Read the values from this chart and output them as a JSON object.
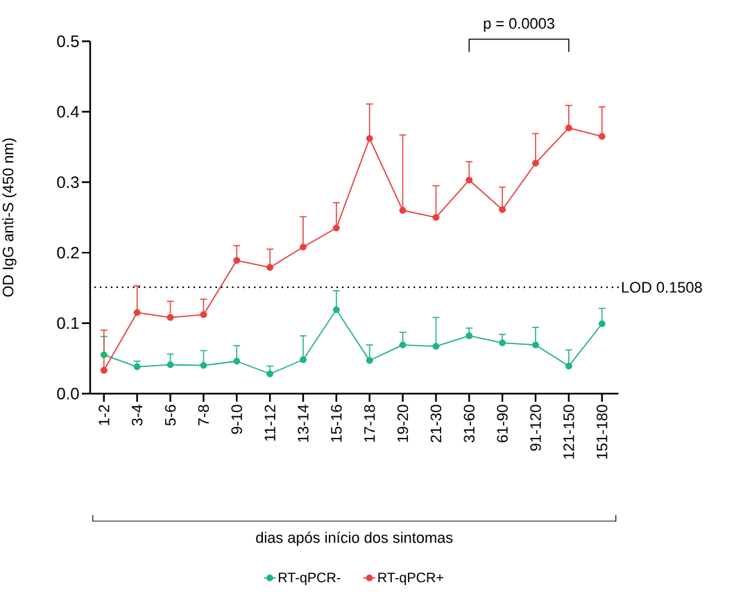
{
  "chart_data": {
    "type": "line",
    "ylabel": "OD IgG anti-S (450 nm)",
    "xlabel": "dias após início dos sintomas",
    "categories": [
      "1-2",
      "3-4",
      "5-6",
      "7-8",
      "9-10",
      "11-12",
      "13-14",
      "15-16",
      "17-18",
      "19-20",
      "21-30",
      "31-60",
      "61-90",
      "91-120",
      "121-150",
      "151-180"
    ],
    "series": [
      {
        "name": "RT-qPCR-",
        "color": "#1fb67a",
        "values": [
          0.055,
          0.038,
          0.041,
          0.04,
          0.046,
          0.028,
          0.048,
          0.119,
          0.047,
          0.069,
          0.067,
          0.082,
          0.072,
          0.069,
          0.039,
          0.099
        ],
        "errors": [
          [
            0.055,
            0.081
          ],
          [
            0.038,
            0.046
          ],
          [
            0.041,
            0.056
          ],
          [
            0.04,
            0.061
          ],
          [
            0.046,
            0.068
          ],
          [
            0.028,
            0.039
          ],
          [
            0.048,
            0.082
          ],
          [
            0.119,
            0.146
          ],
          [
            0.047,
            0.069
          ],
          [
            0.069,
            0.087
          ],
          [
            0.067,
            0.108
          ],
          [
            0.082,
            0.093
          ],
          [
            0.072,
            0.084
          ],
          [
            0.069,
            0.094
          ],
          [
            0.039,
            0.062
          ],
          [
            0.099,
            0.121
          ]
        ]
      },
      {
        "name": "RT-qPCR+",
        "color": "#e8403f",
        "values": [
          0.033,
          0.115,
          0.108,
          0.112,
          0.189,
          0.179,
          0.208,
          0.235,
          0.362,
          0.26,
          0.25,
          0.303,
          0.261,
          0.327,
          0.377,
          0.365
        ],
        "errors": [
          [
            0.033,
            0.09
          ],
          [
            0.115,
            0.153
          ],
          [
            0.108,
            0.131
          ],
          [
            0.112,
            0.134
          ],
          [
            0.189,
            0.21
          ],
          [
            0.179,
            0.205
          ],
          [
            0.208,
            0.251
          ],
          [
            0.235,
            0.271
          ],
          [
            0.362,
            0.411
          ],
          [
            0.26,
            0.367
          ],
          [
            0.25,
            0.295
          ],
          [
            0.303,
            0.329
          ],
          [
            0.261,
            0.293
          ],
          [
            0.327,
            0.369
          ],
          [
            0.377,
            0.409
          ],
          [
            0.365,
            0.407
          ]
        ]
      }
    ],
    "ylim": [
      0,
      0.5
    ],
    "yticks": [
      {
        "value": 0,
        "label": "0.0"
      },
      0.1,
      0.2,
      0.3,
      0.4,
      0.5
    ],
    "ref_lines": [
      {
        "axis": "y",
        "value": 0.1508,
        "label": "LOD 0.1508",
        "color": "#000000",
        "line_style": "dotted"
      }
    ],
    "annotations": [
      "p = 0.0003"
    ],
    "marker": "circle",
    "line_style": "solid",
    "grid": false,
    "legend": "bottom"
  }
}
